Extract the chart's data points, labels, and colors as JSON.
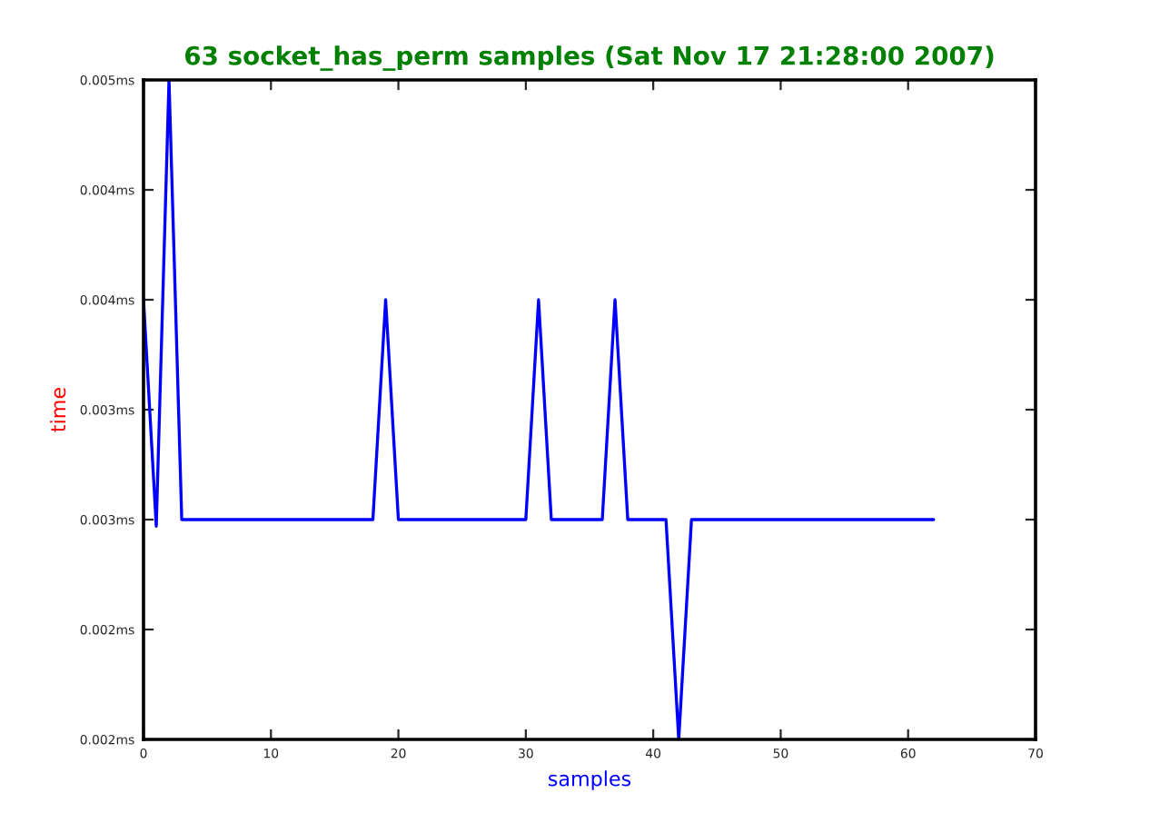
{
  "chart_data": {
    "type": "line",
    "title": "63 socket_has_perm samples (Sat Nov 17 21:28:00 2007)",
    "xlabel": "samples",
    "ylabel": "time",
    "x": [
      0,
      1,
      2,
      3,
      4,
      5,
      6,
      7,
      8,
      9,
      10,
      11,
      12,
      13,
      14,
      15,
      16,
      17,
      18,
      19,
      20,
      21,
      22,
      23,
      24,
      25,
      26,
      27,
      28,
      29,
      30,
      31,
      32,
      33,
      34,
      35,
      36,
      37,
      38,
      39,
      40,
      41,
      42,
      43,
      44,
      45,
      46,
      47,
      48,
      49,
      50,
      51,
      52,
      53,
      54,
      55,
      56,
      57,
      58,
      59,
      60,
      61,
      62
    ],
    "series": [
      {
        "color": "#0000ff",
        "values": [
          0.004,
          0.00297,
          0.005,
          0.003,
          0.003,
          0.003,
          0.003,
          0.003,
          0.003,
          0.003,
          0.003,
          0.003,
          0.003,
          0.003,
          0.003,
          0.003,
          0.003,
          0.003,
          0.003,
          0.004,
          0.003,
          0.003,
          0.003,
          0.003,
          0.003,
          0.003,
          0.003,
          0.003,
          0.003,
          0.003,
          0.003,
          0.004,
          0.003,
          0.003,
          0.003,
          0.003,
          0.003,
          0.004,
          0.003,
          0.003,
          0.003,
          0.003,
          0.002,
          0.003,
          0.003,
          0.003,
          0.003,
          0.003,
          0.003,
          0.003,
          0.003,
          0.003,
          0.003,
          0.003,
          0.003,
          0.003,
          0.003,
          0.003,
          0.003,
          0.003,
          0.003,
          0.003,
          0.003
        ]
      }
    ],
    "xlim": [
      0,
      70
    ],
    "xticks": [
      0,
      10,
      20,
      30,
      40,
      50,
      60,
      70
    ],
    "ylim": [
      0.002,
      0.005
    ],
    "yticks": [
      {
        "value": 0.002,
        "label": "0.002ms"
      },
      {
        "value": 0.0025,
        "label": "0.002ms"
      },
      {
        "value": 0.003,
        "label": "0.003ms"
      },
      {
        "value": 0.0035,
        "label": "0.003ms"
      },
      {
        "value": 0.004,
        "label": "0.004ms"
      },
      {
        "value": 0.0045,
        "label": "0.004ms"
      },
      {
        "value": 0.005,
        "label": "0.005ms"
      }
    ],
    "grid": false,
    "legend": false
  }
}
